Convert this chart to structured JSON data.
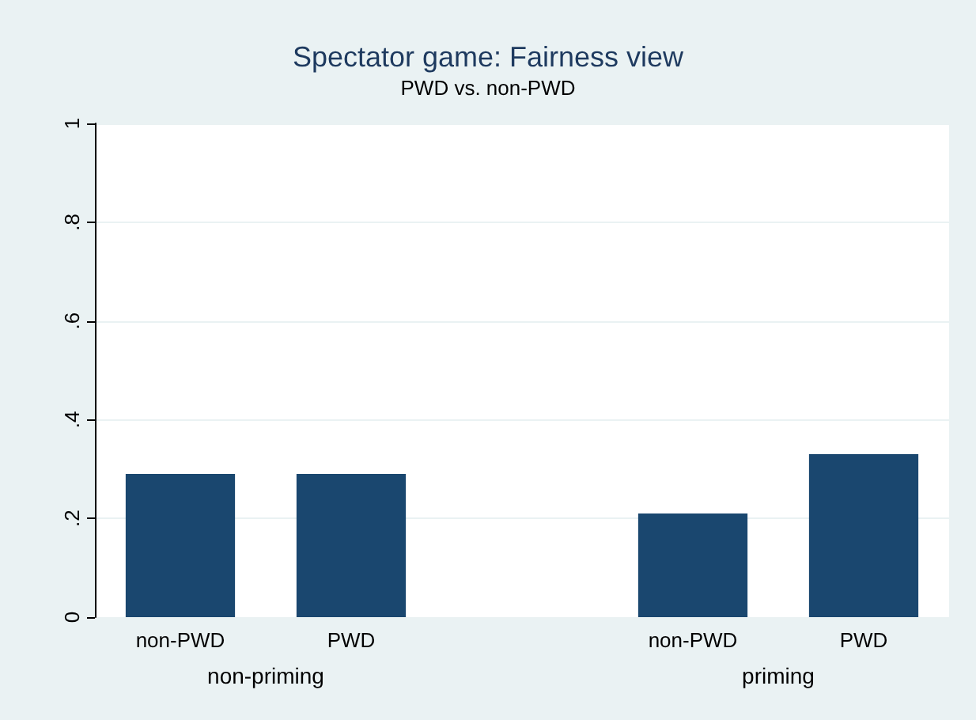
{
  "chart_data": {
    "type": "bar",
    "title": "Spectator game: Fairness view",
    "subtitle": "PWD vs. non-PWD",
    "categories": [
      "non-PWD",
      "PWD",
      null,
      "non-PWD",
      "PWD"
    ],
    "values": [
      0.29,
      0.29,
      null,
      0.21,
      0.33
    ],
    "color": "#1a476f",
    "annotations": [
      "non-priming",
      "priming"
    ],
    "ylim": [
      0,
      1
    ],
    "yticks": [
      {
        "value": 0,
        "label": "0"
      },
      {
        "value": 0.2,
        "label": ".2"
      },
      {
        "value": 0.4,
        "label": ".4"
      },
      {
        "value": 0.6,
        "label": ".6"
      },
      {
        "value": 0.8,
        "label": ".8"
      },
      {
        "value": 1,
        "label": "1"
      }
    ],
    "grid": "y"
  }
}
